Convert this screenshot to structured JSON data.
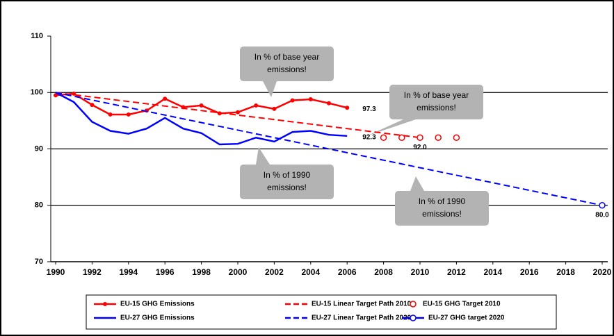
{
  "chart_data": {
    "type": "line",
    "xlim": [
      1990,
      2020
    ],
    "xticks": [
      1990,
      1992,
      1994,
      1996,
      1998,
      2000,
      2002,
      2004,
      2006,
      2008,
      2010,
      2012,
      2014,
      2016,
      2018,
      2020
    ],
    "ylim": [
      70,
      110
    ],
    "yticks": [
      70,
      80,
      90,
      100,
      110
    ],
    "grid": true,
    "legend": "bottom",
    "series": [
      {
        "name": "EU-15 GHG Emissions",
        "color": "#ff0000",
        "linestyle": "solid",
        "marker": "dot",
        "x": [
          1990,
          1991,
          1992,
          1993,
          1994,
          1995,
          1996,
          1997,
          1998,
          1999,
          2000,
          2001,
          2002,
          2003,
          2004,
          2005,
          2006
        ],
        "values": [
          99.5,
          99.8,
          97.8,
          96.1,
          96.1,
          96.8,
          98.9,
          97.4,
          97.7,
          96.3,
          96.5,
          97.7,
          97.1,
          98.6,
          98.8,
          98.1,
          97.3
        ],
        "value_labels": [
          null,
          null,
          null,
          null,
          null,
          null,
          null,
          null,
          null,
          null,
          null,
          null,
          null,
          null,
          null,
          null,
          "97.3"
        ]
      },
      {
        "name": "EU-15 Linear Target Path 2010",
        "color": "#ff0000",
        "linestyle": "dashed",
        "marker": "none",
        "x": [
          1990,
          2010
        ],
        "values": [
          100,
          92
        ]
      },
      {
        "name": "EU-15 GHG Target 2010",
        "color": "#ff0000",
        "linestyle": "none",
        "marker": "open-circle",
        "x": [
          2008,
          2009,
          2010,
          2011,
          2012
        ],
        "values": [
          92,
          92,
          92,
          92,
          92
        ],
        "value_labels": [
          null,
          null,
          "92.0",
          null,
          null
        ]
      },
      {
        "name": "EU-27 GHG Emissions",
        "color": "#0000ff",
        "linestyle": "solid",
        "marker": "none",
        "x": [
          1990,
          1991,
          1992,
          1993,
          1994,
          1995,
          1996,
          1997,
          1998,
          1999,
          2000,
          2001,
          2002,
          2003,
          2004,
          2005,
          2006
        ],
        "values": [
          100,
          98.3,
          94.8,
          93.2,
          92.7,
          93.6,
          95.5,
          93.6,
          92.8,
          90.8,
          90.9,
          92.0,
          91.3,
          93.0,
          93.2,
          92.5,
          92.3
        ],
        "value_labels": [
          null,
          null,
          null,
          null,
          null,
          null,
          null,
          null,
          null,
          null,
          null,
          null,
          null,
          null,
          null,
          null,
          "92.3"
        ]
      },
      {
        "name": "EU-27 Linear Target Path 2020",
        "color": "#0000ff",
        "linestyle": "dashed",
        "marker": "none",
        "x": [
          1990,
          2020
        ],
        "values": [
          100,
          80
        ]
      },
      {
        "name": "EU-27 GHG target 2020",
        "color": "#0000ff",
        "linestyle": "solid",
        "marker": "open-circle",
        "x": [
          2020
        ],
        "values": [
          80
        ],
        "value_labels": [
          "80.0"
        ]
      }
    ],
    "annotations": [
      {
        "lines": [
          "In % of base year",
          "emissions!"
        ]
      },
      {
        "lines": [
          "In % of base year",
          "emissions!"
        ]
      },
      {
        "lines": [
          "In % of 1990",
          "emissions!"
        ]
      },
      {
        "lines": [
          "In % of 1990",
          "emissions!"
        ]
      }
    ]
  }
}
